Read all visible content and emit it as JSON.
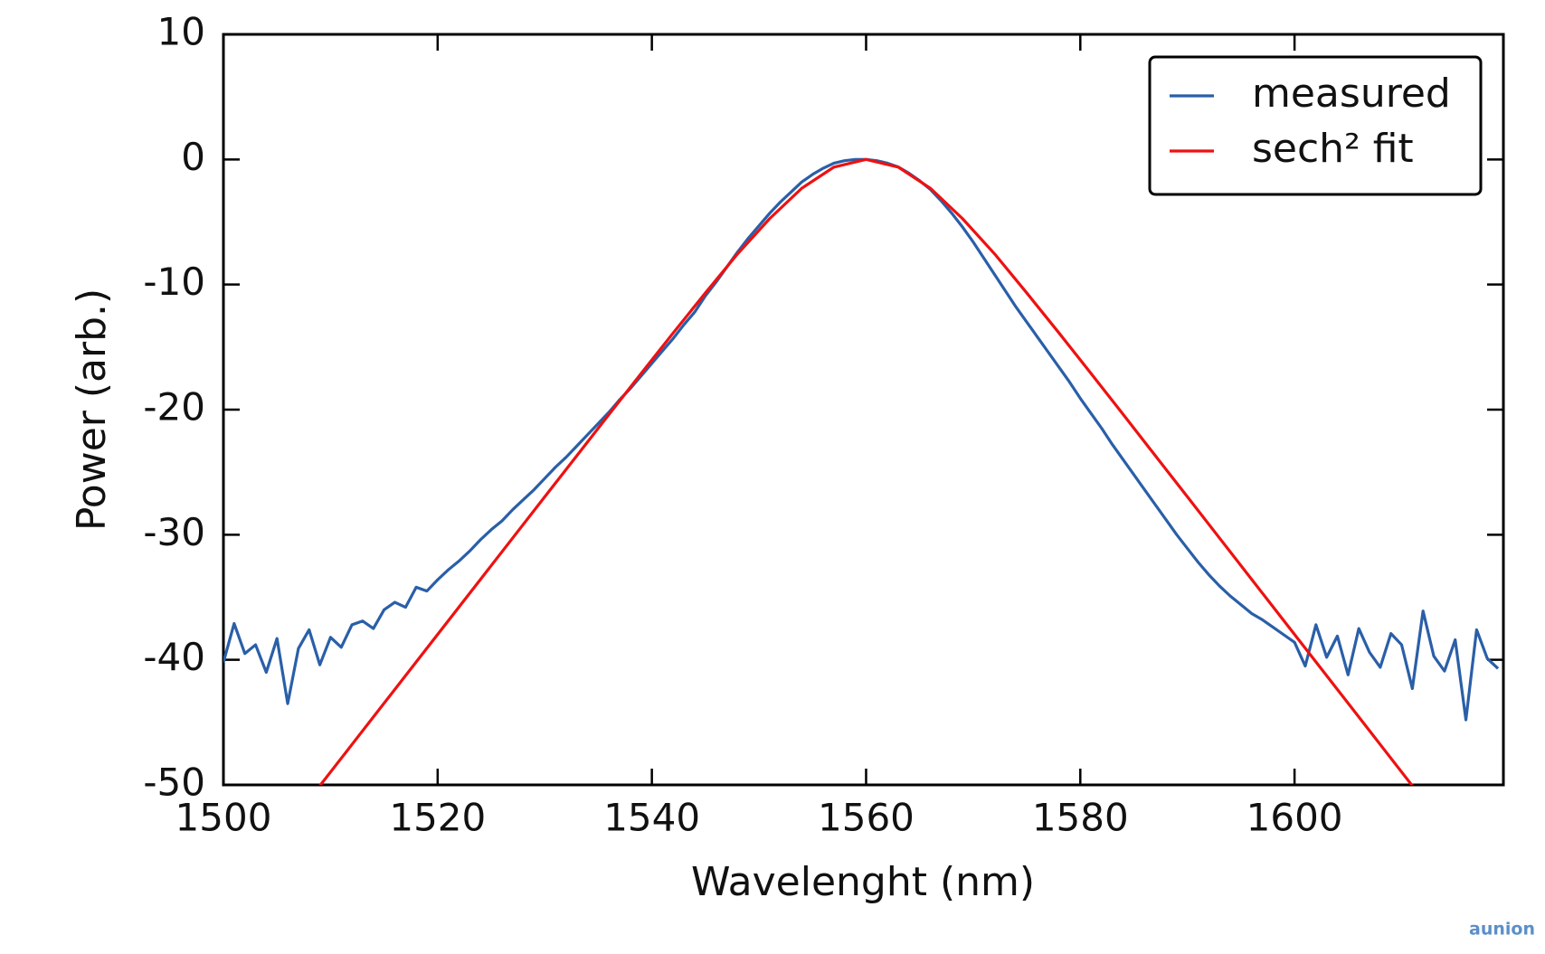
{
  "chart_data": {
    "type": "line",
    "xlabel": "Wavelenght (nm)",
    "ylabel": "Power (arb.)",
    "xlim": [
      1500,
      1619.5
    ],
    "ylim": [
      -50,
      10
    ],
    "xticks": [
      1500,
      1520,
      1540,
      1560,
      1580,
      1600
    ],
    "yticks": [
      10,
      0,
      -10,
      -20,
      -30,
      -40,
      -50
    ],
    "legend": "upper right",
    "watermark": "aunion",
    "series": [
      {
        "name": "measured",
        "color": "#2a5fa8",
        "x": [
          1500,
          1501,
          1502,
          1503,
          1504,
          1505,
          1506,
          1507,
          1508,
          1509,
          1510,
          1511,
          1512,
          1513,
          1514,
          1515,
          1516,
          1517,
          1518,
          1519,
          1520,
          1521,
          1522,
          1523,
          1524,
          1525,
          1526,
          1527,
          1528,
          1529,
          1530,
          1531,
          1532,
          1533,
          1534,
          1535,
          1536,
          1537,
          1538,
          1539,
          1540,
          1541,
          1542,
          1543,
          1544,
          1545,
          1546,
          1547,
          1548,
          1549,
          1550,
          1551,
          1552,
          1553,
          1554,
          1555,
          1556,
          1557,
          1558,
          1559,
          1560,
          1561,
          1562,
          1563,
          1564,
          1565,
          1566,
          1567,
          1568,
          1569,
          1570,
          1571,
          1572,
          1573,
          1574,
          1575,
          1576,
          1577,
          1578,
          1579,
          1580,
          1581,
          1582,
          1583,
          1584,
          1585,
          1586,
          1587,
          1588,
          1589,
          1590,
          1591,
          1592,
          1593,
          1594,
          1595,
          1596,
          1597,
          1598,
          1599,
          1600,
          1601,
          1602,
          1603,
          1604,
          1605,
          1606,
          1607,
          1608,
          1609,
          1610,
          1611,
          1612,
          1613,
          1614,
          1615,
          1616,
          1617,
          1618,
          1619
        ],
        "values": [
          -40.2,
          -37.1,
          -39.5,
          -38.8,
          -41.0,
          -38.3,
          -43.5,
          -39.1,
          -37.6,
          -40.4,
          -38.2,
          -39.0,
          -37.2,
          -36.9,
          -37.5,
          -36.0,
          -35.4,
          -35.8,
          -34.2,
          -34.5,
          -33.6,
          -32.8,
          -32.1,
          -31.3,
          -30.4,
          -29.6,
          -28.9,
          -28.0,
          -27.2,
          -26.4,
          -25.5,
          -24.6,
          -23.8,
          -22.9,
          -22.0,
          -21.1,
          -20.2,
          -19.2,
          -18.3,
          -17.3,
          -16.3,
          -15.3,
          -14.3,
          -13.2,
          -12.2,
          -10.9,
          -9.8,
          -8.6,
          -7.4,
          -6.3,
          -5.3,
          -4.3,
          -3.4,
          -2.6,
          -1.8,
          -1.2,
          -0.7,
          -0.3,
          -0.1,
          0,
          0,
          -0.1,
          -0.3,
          -0.6,
          -1.1,
          -1.7,
          -2.4,
          -3.3,
          -4.3,
          -5.4,
          -6.6,
          -7.9,
          -9.2,
          -10.5,
          -11.8,
          -13.0,
          -14.2,
          -15.4,
          -16.6,
          -17.8,
          -19.1,
          -20.3,
          -21.5,
          -22.8,
          -24.0,
          -25.2,
          -26.4,
          -27.6,
          -28.8,
          -30.0,
          -31.1,
          -32.2,
          -33.2,
          -34.1,
          -34.9,
          -35.6,
          -36.3,
          -36.8,
          -37.4,
          -38.0,
          -38.6,
          -40.5,
          -37.2,
          -39.8,
          -38.1,
          -41.2,
          -37.5,
          -39.4,
          -40.6,
          -37.9,
          -38.8,
          -42.3,
          -36.1,
          -39.7,
          -40.9,
          -38.4,
          -44.8,
          -37.6,
          -39.9,
          -40.7
        ]
      },
      {
        "name": "sech² fit",
        "color": "#ee1111",
        "x": [
          1509,
          1512,
          1515,
          1518,
          1521,
          1524,
          1527,
          1530,
          1533,
          1536,
          1539,
          1542,
          1545,
          1548,
          1551,
          1554,
          1557,
          1560,
          1563,
          1566,
          1569,
          1572,
          1575,
          1578,
          1581,
          1584,
          1587,
          1590,
          1593,
          1596,
          1599,
          1602,
          1605,
          1608,
          1611
        ],
        "values": [
          -50.07,
          -46.77,
          -43.47,
          -40.17,
          -36.87,
          -33.57,
          -30.27,
          -26.97,
          -23.68,
          -20.38,
          -17.11,
          -13.86,
          -10.67,
          -7.55,
          -4.73,
          -2.3,
          -0.61,
          0,
          -0.61,
          -2.3,
          -4.73,
          -7.55,
          -10.67,
          -13.86,
          -17.11,
          -20.38,
          -23.68,
          -26.97,
          -30.27,
          -33.57,
          -36.87,
          -40.17,
          -43.47,
          -46.77,
          -50.07
        ]
      }
    ]
  }
}
